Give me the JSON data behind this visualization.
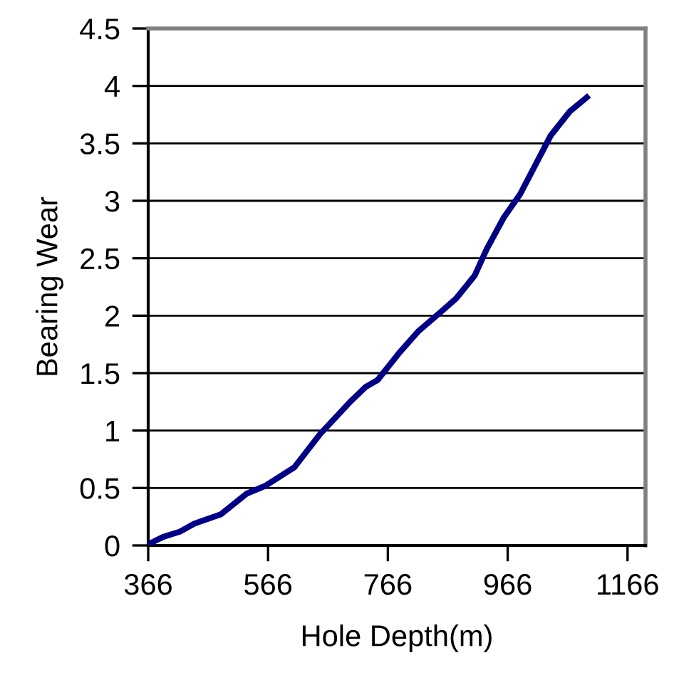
{
  "chart_data": {
    "type": "line",
    "xlabel": "Hole Depth(m)",
    "ylabel": "Bearing Wear",
    "x": [
      366,
      391,
      419,
      443,
      487,
      530,
      562,
      610,
      653,
      705,
      729,
      749,
      784,
      816,
      856,
      880,
      911,
      931,
      959,
      987,
      1015,
      1038,
      1070,
      1098
    ],
    "series": [
      {
        "color": "#000080",
        "values": [
          0.01,
          0.075,
          0.12,
          0.19,
          0.27,
          0.45,
          0.52,
          0.68,
          0.97,
          1.26,
          1.38,
          1.44,
          1.67,
          1.86,
          2.04,
          2.15,
          2.35,
          2.58,
          2.85,
          3.06,
          3.34,
          3.57,
          3.78,
          3.9
        ]
      }
    ],
    "xlim": [
      366,
      1196
    ],
    "xticks": [
      366,
      566,
      766,
      966,
      1166
    ],
    "ylim": [
      0,
      4.5
    ],
    "yticks": [
      0,
      {
        "value": 0.5,
        "label": "0.5"
      },
      1,
      {
        "value": 1.5,
        "label": "1.5"
      },
      2,
      {
        "value": 2.5,
        "label": "2.5"
      },
      3,
      {
        "value": 3.5,
        "label": "3.5"
      },
      4,
      {
        "value": 4.5,
        "label": "4.5"
      }
    ],
    "grid": "y",
    "marker": "none",
    "line_style": "solid"
  }
}
